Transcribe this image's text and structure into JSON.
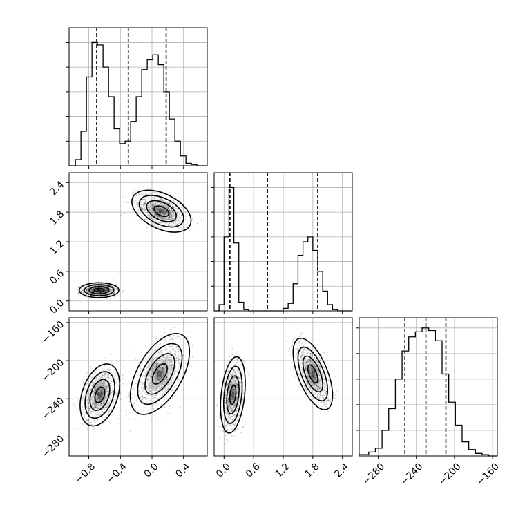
{
  "chart_data": {
    "type": "corner",
    "grid": true,
    "parameters": [
      {
        "range": [
          -1.05,
          0.7
        ],
        "ticks": [
          -0.8,
          -0.4,
          0.0,
          0.4
        ],
        "tick_labels": [
          "−0.8",
          "−0.4",
          "0.0",
          "0.4"
        ],
        "quantiles": [
          -0.7,
          -0.3,
          0.18
        ],
        "hist_ylim": [
          0,
          1.12
        ],
        "hist_bins": [
          [
            -1.05,
            -0.97,
            0.0
          ],
          [
            -0.97,
            -0.9,
            0.05
          ],
          [
            -0.9,
            -0.83,
            0.28
          ],
          [
            -0.83,
            -0.76,
            0.72
          ],
          [
            -0.76,
            -0.69,
            1.0
          ],
          [
            -0.69,
            -0.62,
            0.98
          ],
          [
            -0.62,
            -0.55,
            0.8
          ],
          [
            -0.55,
            -0.48,
            0.56
          ],
          [
            -0.48,
            -0.41,
            0.3
          ],
          [
            -0.41,
            -0.34,
            0.18
          ],
          [
            -0.34,
            -0.27,
            0.2
          ],
          [
            -0.27,
            -0.2,
            0.36
          ],
          [
            -0.2,
            -0.13,
            0.56
          ],
          [
            -0.13,
            -0.06,
            0.78
          ],
          [
            -0.06,
            0.01,
            0.86
          ],
          [
            0.01,
            0.08,
            0.9
          ],
          [
            0.08,
            0.15,
            0.82
          ],
          [
            0.15,
            0.22,
            0.6
          ],
          [
            0.22,
            0.29,
            0.38
          ],
          [
            0.29,
            0.36,
            0.2
          ],
          [
            0.36,
            0.43,
            0.08
          ],
          [
            0.43,
            0.5,
            0.02
          ],
          [
            0.5,
            0.57,
            0.01
          ],
          [
            0.57,
            0.7,
            0.0
          ]
        ]
      },
      {
        "range": [
          -0.2,
          2.6
        ],
        "ticks": [
          0.0,
          0.6,
          1.2,
          1.8,
          2.4
        ],
        "tick_labels": [
          "0.0",
          "0.6",
          "1.2",
          "1.8",
          "2.4"
        ],
        "quantiles": [
          0.12,
          0.88,
          1.9
        ],
        "hist_ylim": [
          0,
          1.12
        ],
        "hist_bins": [
          [
            -0.2,
            -0.1,
            0.0
          ],
          [
            -0.1,
            0.0,
            0.05
          ],
          [
            0.0,
            0.1,
            0.6
          ],
          [
            0.1,
            0.2,
            1.0
          ],
          [
            0.2,
            0.3,
            0.55
          ],
          [
            0.3,
            0.4,
            0.07
          ],
          [
            0.4,
            0.5,
            0.01
          ],
          [
            0.5,
            1.2,
            0.0
          ],
          [
            1.2,
            1.3,
            0.02
          ],
          [
            1.3,
            1.4,
            0.06
          ],
          [
            1.4,
            1.5,
            0.22
          ],
          [
            1.5,
            1.6,
            0.45
          ],
          [
            1.6,
            1.7,
            0.56
          ],
          [
            1.7,
            1.8,
            0.6
          ],
          [
            1.8,
            1.9,
            0.49
          ],
          [
            1.9,
            2.0,
            0.32
          ],
          [
            2.0,
            2.1,
            0.16
          ],
          [
            2.1,
            2.2,
            0.05
          ],
          [
            2.2,
            2.3,
            0.01
          ],
          [
            2.3,
            2.6,
            0.0
          ]
        ]
      },
      {
        "range": [
          -300,
          -155
        ],
        "ticks": [
          -280,
          -240,
          -200,
          -160
        ],
        "tick_labels": [
          "−280",
          "−240",
          "−200",
          "−160"
        ],
        "quantiles": [
          -252,
          -230,
          -209
        ],
        "hist_ylim": [
          0,
          1.08
        ],
        "hist_bins": [
          [
            -300,
            -290,
            0.01
          ],
          [
            -290,
            -283,
            0.03
          ],
          [
            -283,
            -276,
            0.06
          ],
          [
            -276,
            -269,
            0.2
          ],
          [
            -269,
            -262,
            0.37
          ],
          [
            -262,
            -255,
            0.6
          ],
          [
            -255,
            -248,
            0.82
          ],
          [
            -248,
            -241,
            0.93
          ],
          [
            -241,
            -234,
            0.97
          ],
          [
            -234,
            -227,
            1.0
          ],
          [
            -227,
            -220,
            0.98
          ],
          [
            -220,
            -213,
            0.9
          ],
          [
            -213,
            -206,
            0.64
          ],
          [
            -206,
            -199,
            0.42
          ],
          [
            -199,
            -192,
            0.24
          ],
          [
            -192,
            -185,
            0.11
          ],
          [
            -185,
            -178,
            0.05
          ],
          [
            -178,
            -171,
            0.02
          ],
          [
            -171,
            -164,
            0.01
          ],
          [
            -164,
            -155,
            0.0
          ]
        ]
      }
    ],
    "pairs": [
      {
        "x_param": 0,
        "y_param": 1,
        "clusters": [
          {
            "center": [
              -0.67,
              0.22
            ],
            "sigma": [
              0.1,
              0.06
            ],
            "rho": 0.0,
            "weight": 0.5
          },
          {
            "center": [
              0.12,
              1.82
            ],
            "sigma": [
              0.15,
              0.17
            ],
            "rho": -0.45,
            "weight": 0.5
          }
        ]
      },
      {
        "x_param": 0,
        "y_param": 2,
        "clusters": [
          {
            "center": [
              -0.66,
              -236
            ],
            "sigma": [
              0.1,
              13
            ],
            "rho": 0.35,
            "weight": 0.5
          },
          {
            "center": [
              0.1,
              -214
            ],
            "sigma": [
              0.15,
              17
            ],
            "rho": 0.55,
            "weight": 0.5
          }
        ]
      },
      {
        "x_param": 1,
        "y_param": 2,
        "clusters": [
          {
            "center": [
              0.18,
              -236
            ],
            "sigma": [
              0.1,
              16
            ],
            "rho": 0.3,
            "weight": 0.5
          },
          {
            "center": [
              1.8,
              -214
            ],
            "sigma": [
              0.16,
              15
            ],
            "rho": -0.6,
            "weight": 0.5
          }
        ]
      }
    ],
    "contour_levels_sigma": [
      0.5,
      1.0,
      1.5,
      2.0
    ]
  }
}
